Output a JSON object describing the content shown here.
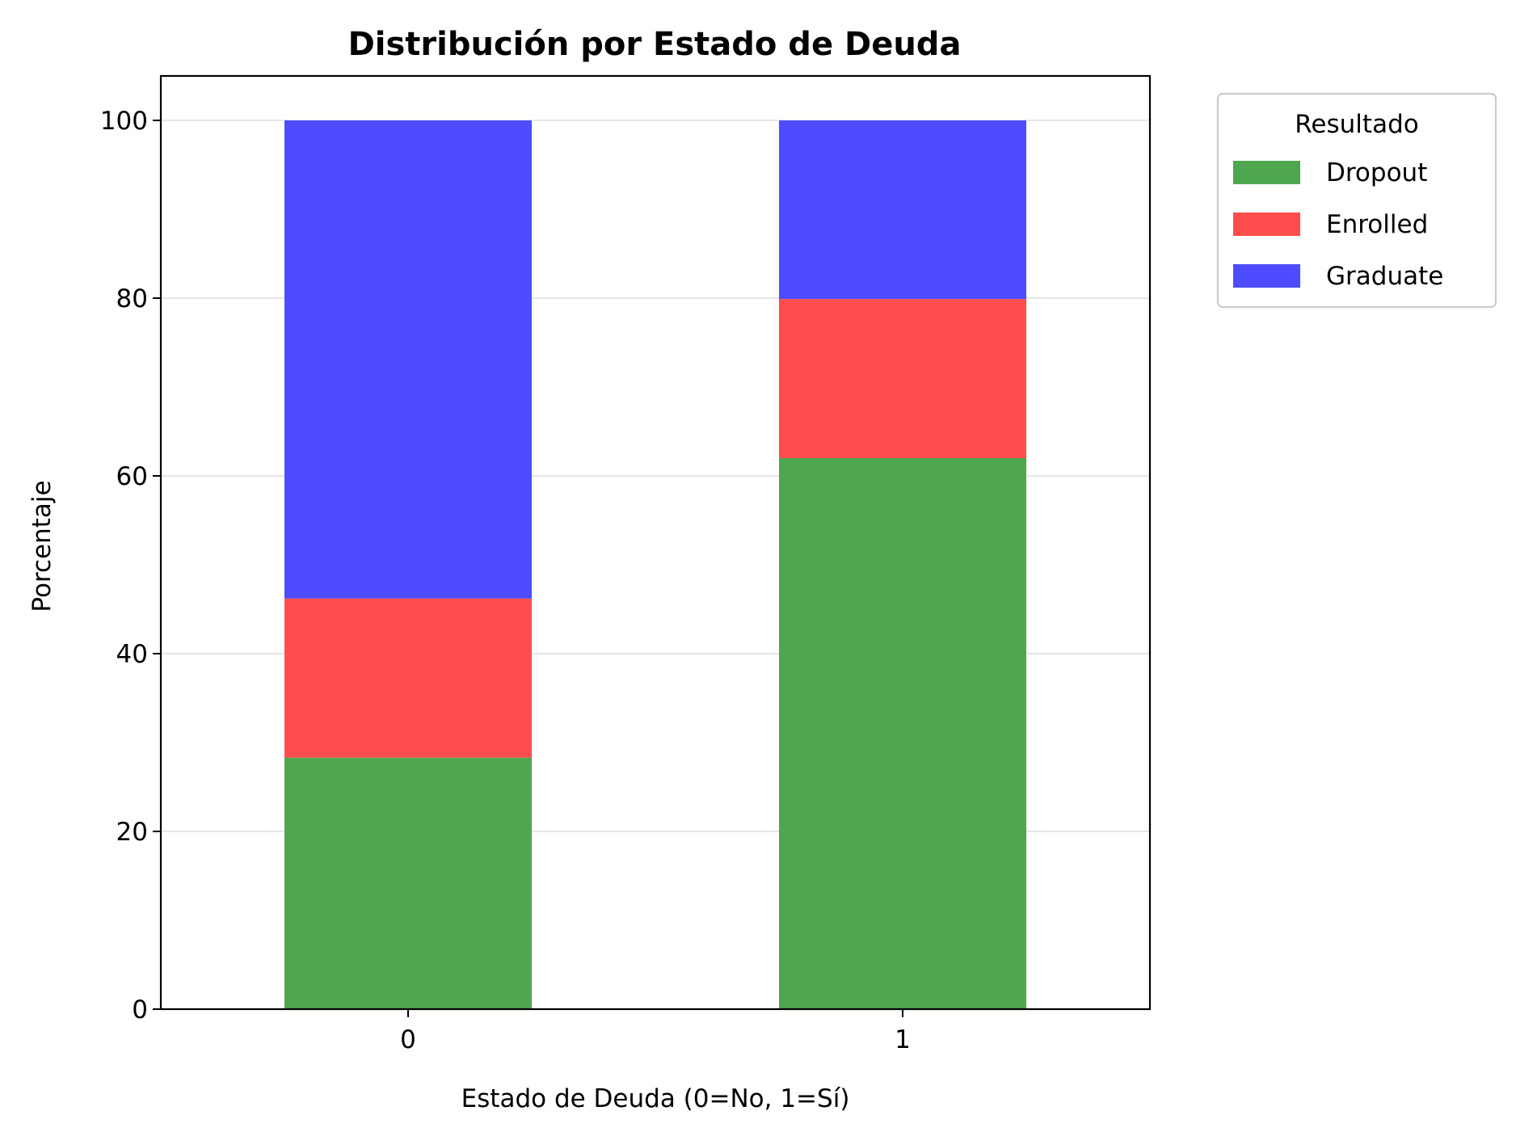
{
  "chart_data": {
    "type": "bar",
    "stacked": true,
    "title": "Distribución por Estado de Deuda",
    "xlabel": "Estado de Deuda (0=No, 1=Sí)",
    "ylabel": "Porcentaje",
    "categories": [
      "0",
      "1"
    ],
    "ylim": [
      0,
      105
    ],
    "yticks": [
      0,
      20,
      40,
      60,
      80,
      100
    ],
    "grid": "horizontal",
    "legend": {
      "title": "Resultado",
      "placement": "outside upper right"
    },
    "series": [
      {
        "name": "Dropout",
        "values": [
          28.3,
          62.0
        ],
        "color": "#4ea64e"
      },
      {
        "name": "Enrolled",
        "values": [
          17.9,
          17.9
        ],
        "color": "#ff4d4d"
      },
      {
        "name": "Graduate",
        "values": [
          53.8,
          20.1
        ],
        "color": "#4d4dff"
      }
    ]
  }
}
